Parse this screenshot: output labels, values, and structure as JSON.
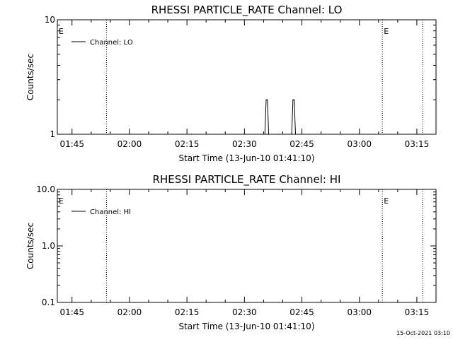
{
  "chart_data": [
    {
      "type": "line",
      "title": "RHESSI PARTICLE_RATE Channel: LO",
      "xlabel": "Start Time (13-Jun-10 01:41:10)",
      "ylabel": "Counts/sec",
      "yscale": "log",
      "ylim": [
        1,
        10
      ],
      "ytick_labels": [
        "1",
        "10"
      ],
      "xlim": [
        "01:41:10",
        "03:20:00"
      ],
      "xtick_labels": [
        "01:45",
        "02:00",
        "02:15",
        "02:30",
        "02:45",
        "03:00",
        "03:15"
      ],
      "legend": {
        "placement": "top-left",
        "entries": [
          "Channel: LO"
        ]
      },
      "flag_labels": [
        {
          "text": "E",
          "time": "01:41:10"
        },
        {
          "text": "E",
          "time": "03:06:00"
        }
      ],
      "vertical_dotted_lines": [
        "01:54:00",
        "03:06:00",
        "03:16:30"
      ],
      "series": [
        {
          "name": "Channel: LO",
          "color": "#000000",
          "x": [
            "02:35:20",
            "02:35:40",
            "02:36:00",
            "02:36:20",
            "02:42:20",
            "02:42:40",
            "02:43:00",
            "02:43:20"
          ],
          "values": [
            1,
            2,
            2,
            1,
            1,
            2,
            2,
            1
          ]
        }
      ]
    },
    {
      "type": "line",
      "title": "RHESSI PARTICLE_RATE Channel: HI",
      "xlabel": "Start Time (13-Jun-10 01:41:10)",
      "ylabel": "Counts/sec",
      "yscale": "log",
      "ylim": [
        0.1,
        10
      ],
      "ytick_labels": [
        "0.1",
        "1.0",
        "10.0"
      ],
      "xlim": [
        "01:41:10",
        "03:20:00"
      ],
      "xtick_labels": [
        "01:45",
        "02:00",
        "02:15",
        "02:30",
        "02:45",
        "03:00",
        "03:15"
      ],
      "legend": {
        "placement": "top-left",
        "entries": [
          "Channel: HI"
        ]
      },
      "flag_labels": [
        {
          "text": "E",
          "time": "01:41:10"
        },
        {
          "text": "E",
          "time": "03:06:00"
        }
      ],
      "vertical_dotted_lines": [
        "01:54:00",
        "03:06:00",
        "03:16:30"
      ],
      "series": [
        {
          "name": "Channel: HI",
          "color": "#000000",
          "x": [],
          "values": []
        }
      ]
    }
  ],
  "footer": {
    "timestamp": "15-Oct-2021 03:10"
  }
}
